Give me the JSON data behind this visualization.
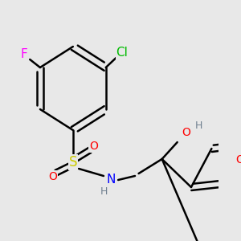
{
  "background_color": "#e8e8e8",
  "atom_colors": {
    "C": "#000000",
    "H_gray": "#708090",
    "N": "#0000ff",
    "O": "#ff0000",
    "S": "#cccc00",
    "Cl": "#00bb00",
    "F": "#ff00ff"
  },
  "bond_color": "#000000",
  "bond_width": 1.8,
  "figsize": [
    3.0,
    3.0
  ],
  "dpi": 100
}
